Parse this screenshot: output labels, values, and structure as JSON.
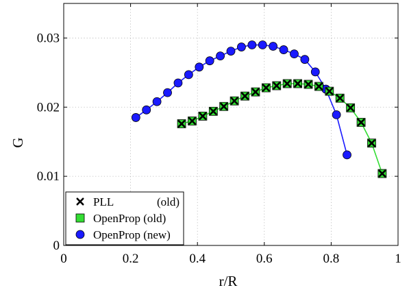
{
  "chart_data": {
    "type": "line",
    "title": "",
    "xlabel": "r/R",
    "ylabel": "G",
    "xlim": [
      0,
      1
    ],
    "ylim": [
      0,
      0.035
    ],
    "xticks": [
      0,
      0.2,
      0.4,
      0.6,
      0.8,
      1
    ],
    "xtick_labels": [
      "0",
      "0.2",
      "0.4",
      "0.6",
      "0.8",
      "1"
    ],
    "yticks": [
      0,
      0.01,
      0.02,
      0.03
    ],
    "ytick_labels": [
      "0",
      "0.01",
      "0.02",
      "0.03"
    ],
    "grid": true,
    "legend_position": "bottom-left",
    "legend": [
      {
        "series_index": 0,
        "name": "PLL",
        "suffix": "(old)"
      },
      {
        "series_index": 1,
        "name": "OpenProp (old)",
        "suffix": ""
      },
      {
        "series_index": 2,
        "name": "OpenProp (new)",
        "suffix": ""
      }
    ],
    "series": [
      {
        "name": "PLL (old)",
        "marker": "x",
        "color": "#000000",
        "line": false,
        "x": [
          0.3526,
          0.3842,
          0.4158,
          0.4474,
          0.4789,
          0.5105,
          0.5421,
          0.5737,
          0.6053,
          0.6368,
          0.6684,
          0.7,
          0.7316,
          0.7632,
          0.7947,
          0.8263,
          0.8579,
          0.8895,
          0.9211,
          0.9526,
          0.9842
        ],
        "y": [
          0.0176,
          0.018,
          0.0187,
          0.0194,
          0.0201,
          0.0209,
          0.0216,
          0.0222,
          0.0228,
          0.0231,
          0.0234,
          0.0234,
          0.0233,
          0.023,
          0.0223,
          0.0213,
          0.0199,
          0.0178,
          0.0148,
          0.0104,
          null
        ]
      },
      {
        "name": "OpenProp (old)",
        "marker": "square",
        "color": "#33dd33",
        "line": true,
        "x": [
          0.3526,
          0.3842,
          0.4158,
          0.4474,
          0.4789,
          0.5105,
          0.5421,
          0.5737,
          0.6053,
          0.6368,
          0.6684,
          0.7,
          0.7316,
          0.7632,
          0.7947,
          0.8263,
          0.8579,
          0.8895,
          0.9211,
          0.9526,
          0.9842
        ],
        "y": [
          0.0176,
          0.018,
          0.0187,
          0.0194,
          0.0201,
          0.0209,
          0.0216,
          0.0222,
          0.0228,
          0.0231,
          0.0234,
          0.0234,
          0.0233,
          0.023,
          0.0223,
          0.0213,
          0.0199,
          0.0178,
          0.0148,
          0.0104,
          null
        ]
      },
      {
        "name": "OpenProp (new)",
        "marker": "circle",
        "color": "#1a1aff",
        "line": true,
        "x": [
          0.2158,
          0.2474,
          0.2789,
          0.3105,
          0.3421,
          0.3737,
          0.4053,
          0.4368,
          0.4684,
          0.5,
          0.5316,
          0.5632,
          0.5947,
          0.6263,
          0.6579,
          0.6895,
          0.7211,
          0.7526,
          0.7842,
          0.8158,
          0.8474,
          0.8789,
          0.9105,
          0.9421,
          0.9737
        ],
        "y": [
          0.0185,
          0.0196,
          0.0208,
          0.0221,
          0.0235,
          0.0247,
          0.0258,
          0.0267,
          0.0274,
          0.0281,
          0.0287,
          0.029,
          0.029,
          0.0288,
          0.0283,
          0.0277,
          0.0269,
          0.0251,
          0.0226,
          0.0189,
          0.0131,
          null,
          null,
          null,
          null
        ]
      }
    ]
  }
}
